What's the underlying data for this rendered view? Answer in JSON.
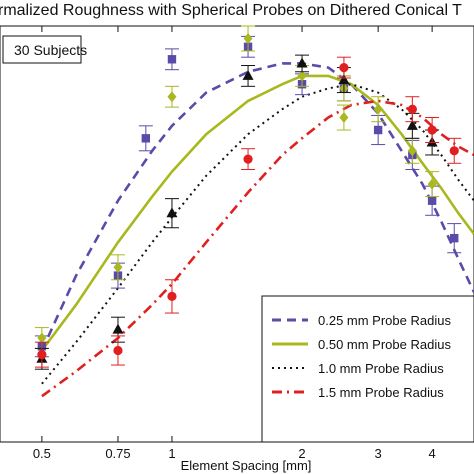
{
  "chart_data": {
    "type": "scatter",
    "title": "rmalized Roughness with Spherical Probes on Dithered Conical T",
    "xlabel": "Element Spacing [mm]",
    "ylabel": "",
    "x_scale": "log",
    "xlim": [
      0.4,
      5.0
    ],
    "ylim": [
      0,
      1
    ],
    "x_ticks": [
      0.5,
      0.75,
      1,
      2,
      3,
      4
    ],
    "x_tick_labels": [
      "0.5",
      "0.75",
      "1",
      "2",
      "3",
      "4"
    ],
    "annotation": "30 Subjects",
    "legend_position": "bottom-right",
    "series": [
      {
        "name": "0.25 mm Probe Radius",
        "color": "#5b4aa8",
        "marker": "square",
        "line_style": "dashed",
        "curve": {
          "x": [
            0.5,
            0.6,
            0.75,
            0.9,
            1.0,
            1.2,
            1.5,
            1.8,
            2.0,
            2.3,
            2.6,
            3.0,
            3.4,
            3.8,
            4.2,
            4.6,
            5.0
          ],
          "y": [
            0.22,
            0.4,
            0.58,
            0.7,
            0.76,
            0.84,
            0.89,
            0.91,
            0.91,
            0.9,
            0.86,
            0.79,
            0.7,
            0.62,
            0.53,
            0.44,
            0.36
          ]
        },
        "points": [
          {
            "x": 0.5,
            "y": 0.23,
            "err": 0.025
          },
          {
            "x": 0.75,
            "y": 0.4,
            "err": 0.03
          },
          {
            "x": 0.87,
            "y": 0.73,
            "err": 0.03
          },
          {
            "x": 1.0,
            "y": 0.92,
            "err": 0.025
          },
          {
            "x": 1.5,
            "y": 0.95,
            "err": 0.025
          },
          {
            "x": 2.0,
            "y": 0.86,
            "err": 0.025
          },
          {
            "x": 2.5,
            "y": 0.85,
            "err": 0.03
          },
          {
            "x": 3.0,
            "y": 0.75,
            "err": 0.035
          },
          {
            "x": 3.6,
            "y": 0.69,
            "err": 0.035
          },
          {
            "x": 4.0,
            "y": 0.58,
            "err": 0.035
          },
          {
            "x": 4.5,
            "y": 0.49,
            "err": 0.035
          }
        ]
      },
      {
        "name": "0.50 mm Probe Radius",
        "color": "#a9b81e",
        "marker": "diamond",
        "line_style": "solid",
        "curve": {
          "x": [
            0.5,
            0.6,
            0.75,
            0.9,
            1.0,
            1.2,
            1.5,
            1.8,
            2.0,
            2.3,
            2.6,
            3.0,
            3.4,
            3.8,
            4.2,
            4.6,
            5.0
          ],
          "y": [
            0.22,
            0.33,
            0.48,
            0.59,
            0.65,
            0.74,
            0.82,
            0.86,
            0.88,
            0.88,
            0.86,
            0.81,
            0.74,
            0.67,
            0.61,
            0.55,
            0.5
          ]
        },
        "points": [
          {
            "x": 0.5,
            "y": 0.25,
            "err": 0.025
          },
          {
            "x": 0.75,
            "y": 0.42,
            "err": 0.03
          },
          {
            "x": 1.0,
            "y": 0.83,
            "err": 0.025
          },
          {
            "x": 1.5,
            "y": 0.97,
            "err": 0.03
          },
          {
            "x": 2.0,
            "y": 0.88,
            "err": 0.025
          },
          {
            "x": 2.5,
            "y": 0.85,
            "err": 0.03
          },
          {
            "x": 2.5,
            "y": 0.78,
            "err": 0.03
          },
          {
            "x": 3.0,
            "y": 0.8,
            "err": 0.03
          },
          {
            "x": 3.6,
            "y": 0.7,
            "err": 0.03
          },
          {
            "x": 4.0,
            "y": 0.62,
            "err": 0.03
          }
        ]
      },
      {
        "name": "1.0 mm Probe Radius",
        "color": "#111111",
        "marker": "triangle",
        "line_style": "dotted",
        "curve": {
          "x": [
            0.5,
            0.6,
            0.75,
            0.9,
            1.0,
            1.2,
            1.5,
            1.8,
            2.0,
            2.3,
            2.6,
            3.0,
            3.4,
            3.8,
            4.2,
            4.6,
            5.0
          ],
          "y": [
            0.14,
            0.24,
            0.37,
            0.48,
            0.54,
            0.64,
            0.74,
            0.8,
            0.83,
            0.85,
            0.86,
            0.84,
            0.8,
            0.75,
            0.69,
            0.63,
            0.58
          ]
        },
        "points": [
          {
            "x": 0.5,
            "y": 0.2,
            "err": 0.025
          },
          {
            "x": 0.75,
            "y": 0.27,
            "err": 0.03
          },
          {
            "x": 1.0,
            "y": 0.55,
            "err": 0.035
          },
          {
            "x": 1.5,
            "y": 0.88,
            "err": 0.025
          },
          {
            "x": 2.0,
            "y": 0.91,
            "err": 0.02
          },
          {
            "x": 2.5,
            "y": 0.87,
            "err": 0.03
          },
          {
            "x": 3.6,
            "y": 0.76,
            "err": 0.03
          },
          {
            "x": 4.0,
            "y": 0.72,
            "err": 0.03
          }
        ]
      },
      {
        "name": "1.5 mm Probe Radius",
        "color": "#e02020",
        "marker": "circle",
        "line_style": "dashdot",
        "curve": {
          "x": [
            0.5,
            0.6,
            0.75,
            0.9,
            1.0,
            1.2,
            1.5,
            1.8,
            2.0,
            2.3,
            2.6,
            3.0,
            3.4,
            3.8,
            4.2,
            4.6,
            5.0
          ],
          "y": [
            0.11,
            0.17,
            0.25,
            0.33,
            0.38,
            0.48,
            0.6,
            0.69,
            0.73,
            0.78,
            0.81,
            0.82,
            0.81,
            0.78,
            0.74,
            0.71,
            0.69
          ]
        },
        "points": [
          {
            "x": 0.5,
            "y": 0.21,
            "err": 0.03
          },
          {
            "x": 0.75,
            "y": 0.22,
            "err": 0.035
          },
          {
            "x": 1.0,
            "y": 0.35,
            "err": 0.04
          },
          {
            "x": 1.5,
            "y": 0.68,
            "err": 0.025
          },
          {
            "x": 2.5,
            "y": 0.9,
            "err": 0.025
          },
          {
            "x": 3.6,
            "y": 0.8,
            "err": 0.03
          },
          {
            "x": 4.0,
            "y": 0.75,
            "err": 0.03
          },
          {
            "x": 4.5,
            "y": 0.7,
            "err": 0.03
          }
        ]
      }
    ]
  }
}
